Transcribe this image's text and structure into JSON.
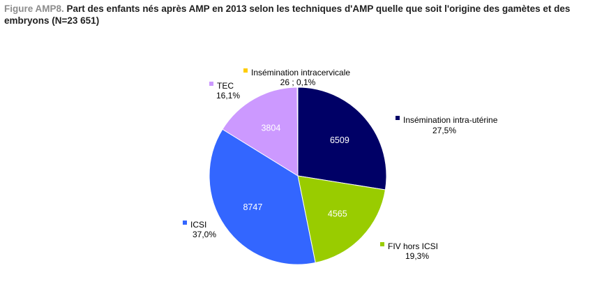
{
  "title": {
    "prefix": "Figure AMP8.",
    "text": "Part des enfants nés après AMP en 2013 selon les techniques d'AMP quelle que soit l'origine des gamètes et des embryons (N=23 651)"
  },
  "chart_data": {
    "type": "pie",
    "title": "Figure AMP8. Part des enfants nés après AMP en 2013 selon les techniques d'AMP quelle que soit l'origine des gamètes et des embryons (N=23 651)",
    "start": "12 o'clock, clockwise",
    "total": 23651,
    "slices": [
      {
        "name": "Insémination intra-utérine",
        "value": 6509,
        "value_label": "6509",
        "percent_label": "27,5%",
        "color": "#000066"
      },
      {
        "name": "FIV hors ICSI",
        "value": 4565,
        "value_label": "4565",
        "percent_label": "19,3%",
        "color": "#99cc00"
      },
      {
        "name": "ICSI",
        "value": 8747,
        "value_label": "8747",
        "percent_label": "37,0%",
        "color": "#3366ff"
      },
      {
        "name": "TEC",
        "value": 3804,
        "value_label": "3804",
        "percent_label": "16,1%",
        "color": "#cc99ff"
      },
      {
        "name": "Insémination intracervicale",
        "value": 26,
        "value_label": "",
        "percent_label": "26 ; 0,1%",
        "color": "#ffcc00"
      }
    ]
  }
}
